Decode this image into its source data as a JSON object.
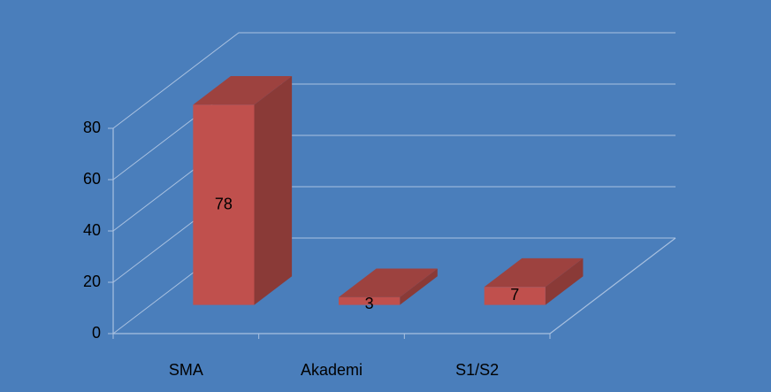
{
  "chart_data": {
    "type": "bar",
    "categories": [
      "SMA",
      "Akademi",
      "S1/S2"
    ],
    "values": [
      78,
      3,
      7
    ],
    "color": "#c0504d",
    "ylim": [
      0,
      80
    ],
    "yticks": [
      0,
      20,
      40,
      60,
      80
    ],
    "grid": true
  }
}
